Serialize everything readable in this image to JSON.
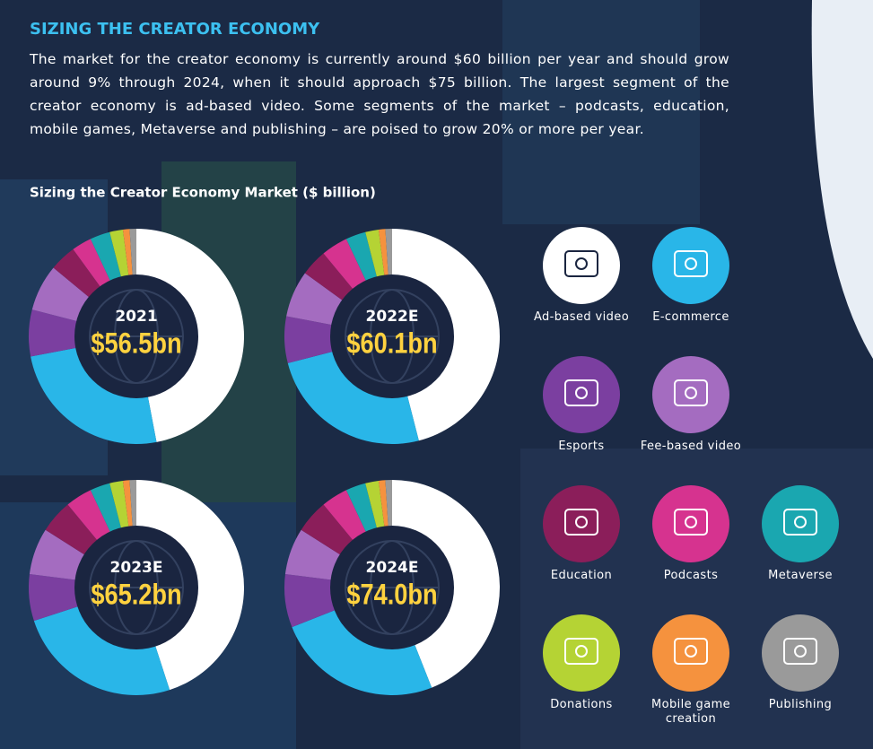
{
  "header": {
    "title": "SIZING THE CREATOR ECONOMY",
    "description": "The market for the creator economy is currently around $60 billion per year and should grow around 9% through 2024, when it should approach $75 billion. The largest segment of the creator economy is ad-based video. Some segments of the market – podcasts, education, mobile games, Metaverse and publishing – are poised to grow 20% or more per year.",
    "chart_title": "Sizing the Creator Economy Market ($ billion)"
  },
  "legend": {
    "categories": [
      "Ad-based video",
      "E-commerce",
      "Esports",
      "Fee-based video",
      "Education",
      "Podcasts",
      "Metaverse",
      "Donations",
      "Mobile game creation",
      "Publishing"
    ],
    "colors": [
      "#ffffff",
      "#29b6e8",
      "#7b3fa0",
      "#a46cc0",
      "#8b1e5a",
      "#d6338f",
      "#1aa7b0",
      "#b5d334",
      "#f5923e",
      "#9a9a9a"
    ]
  },
  "chart_data": [
    {
      "type": "pie",
      "title": "2021",
      "total_label": "$56.5bn",
      "values": [
        47,
        25,
        7,
        7,
        4,
        3,
        3,
        2,
        1,
        1
      ]
    },
    {
      "type": "pie",
      "title": "2022E",
      "total_label": "$60.1bn",
      "values": [
        46,
        25,
        7,
        7,
        4,
        4,
        3,
        2,
        1,
        1
      ]
    },
    {
      "type": "pie",
      "title": "2023E",
      "total_label": "$65.2bn",
      "values": [
        45,
        25,
        7,
        7,
        5,
        4,
        3,
        2,
        1,
        1
      ]
    },
    {
      "type": "pie",
      "title": "2024E",
      "total_label": "$74.0bn",
      "values": [
        44,
        25,
        8,
        7,
        5,
        4,
        3,
        2,
        1,
        1
      ]
    }
  ]
}
